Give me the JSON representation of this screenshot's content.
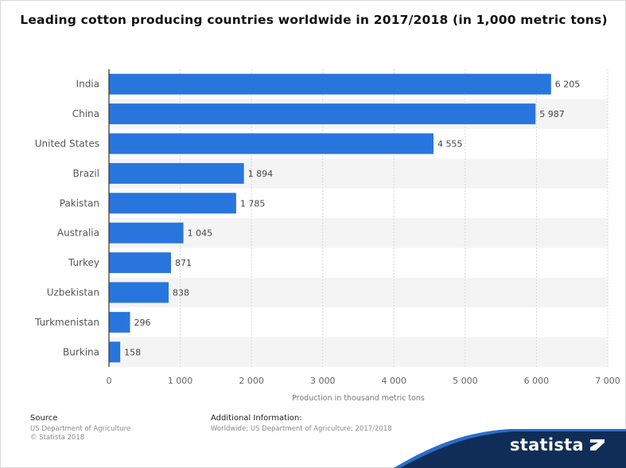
{
  "chart_data": {
    "type": "bar",
    "orientation": "horizontal",
    "title": "Leading cotton producing countries worldwide in 2017/2018 (in 1,000 metric tons)",
    "categories": [
      "India",
      "China",
      "United States",
      "Brazil",
      "Pakistan",
      "Australia",
      "Turkey",
      "Uzbekistan",
      "Turkmenistan",
      "Burkina"
    ],
    "values": [
      6205,
      5987,
      4555,
      1894,
      1785,
      1045,
      871,
      838,
      296,
      158
    ],
    "value_labels": [
      "6 205",
      "5 987",
      "4 555",
      "1 894",
      "1 785",
      "1 045",
      "871",
      "838",
      "296",
      "158"
    ],
    "xlabel": "Production in thousand metric tons",
    "ylabel": "",
    "xlim": [
      0,
      7000
    ],
    "x_ticks": [
      0,
      1000,
      2000,
      3000,
      4000,
      5000,
      6000,
      7000
    ],
    "x_tick_labels": [
      "0",
      "1 000",
      "2 000",
      "3 000",
      "4 000",
      "5 000",
      "6 000",
      "7 000"
    ],
    "grid": true,
    "bar_color": "#2876dd",
    "stripe_color": "#f4f4f4"
  },
  "footer": {
    "source_heading": "Source",
    "source_line1": "US Department of Agriculture",
    "source_line2": "© Statista 2018",
    "info_heading": "Additional Information:",
    "info_line1": "Worldwide; US Department of Agriculture; 2017/2018"
  },
  "brand": {
    "name": "statista",
    "band_color": "#0f2d56",
    "accent_color": "#2b6ec9"
  }
}
